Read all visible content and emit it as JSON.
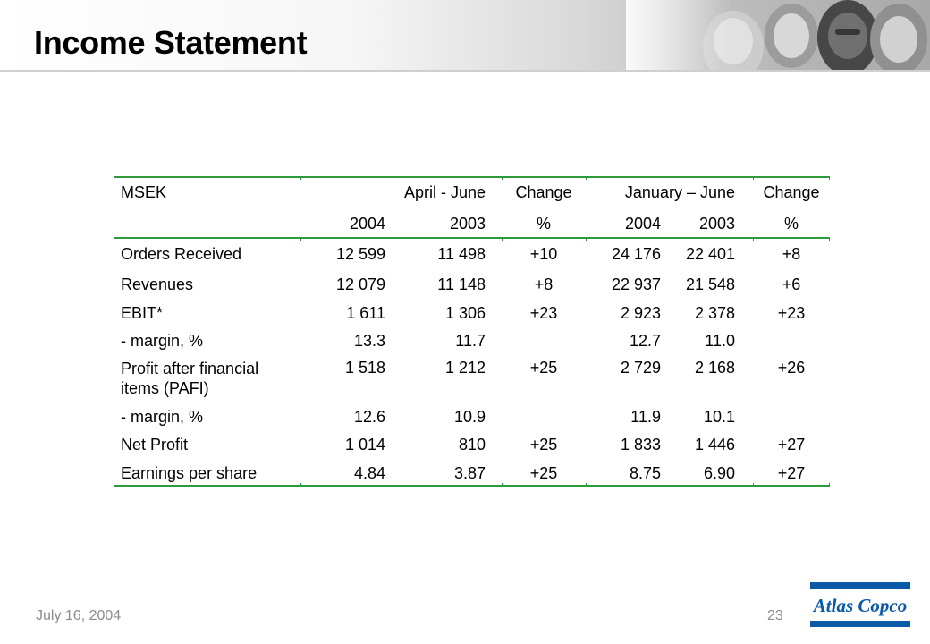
{
  "slide": {
    "title": "Income Statement"
  },
  "table": {
    "header1": [
      "MSEK",
      "",
      "April - June",
      "Change",
      "January – June",
      "",
      "Change"
    ],
    "header2": [
      "",
      "2004",
      "2003",
      "%",
      "2004",
      "2003",
      "%"
    ],
    "rows": [
      {
        "label": "Orders Received",
        "q2004": "12 599",
        "q2003": "11 498",
        "qchg": "+10",
        "h2004": "24 176",
        "h2003": "22 401",
        "hchg": "+8"
      },
      {
        "label": "Revenues",
        "q2004": "12 079",
        "q2003": "11 148",
        "qchg": "+8",
        "h2004": "22 937",
        "h2003": "21 548",
        "hchg": "+6"
      },
      {
        "label": "EBIT*",
        "q2004": "1 611",
        "q2003": "1 306",
        "qchg": "+23",
        "h2004": "2 923",
        "h2003": "2 378",
        "hchg": "+23"
      },
      {
        "label": "- margin, %",
        "q2004": "13.3",
        "q2003": "11.7",
        "qchg": "",
        "h2004": "12.7",
        "h2003": "11.0",
        "hchg": ""
      },
      {
        "label": "Profit after financial items (PAFI)",
        "q2004": "1 518",
        "q2003": "1 212",
        "qchg": "+25",
        "h2004": "2 729",
        "h2003": "2 168",
        "hchg": "+26"
      },
      {
        "label": "- margin, %",
        "q2004": "12.6",
        "q2003": "10.9",
        "qchg": "",
        "h2004": "11.9",
        "h2003": "10.1",
        "hchg": ""
      },
      {
        "label": "Net Profit",
        "q2004": "1 014",
        "q2003": "810",
        "qchg": "+25",
        "h2004": "1 833",
        "h2003": "1 446",
        "hchg": "+27"
      },
      {
        "label": "Earnings per share",
        "q2004": "4.84",
        "q2003": "3.87",
        "qchg": "+25",
        "h2004": "8.75",
        "h2003": "6.90",
        "hchg": "+27"
      }
    ]
  },
  "footer": {
    "date": "July 16, 2004",
    "page_number": "23",
    "logo_text": "Atlas Copco"
  },
  "colors": {
    "rule_green": "#2f9a3c",
    "logo_blue": "#0a5aa8",
    "footer_gray": "#8c8c8c"
  }
}
